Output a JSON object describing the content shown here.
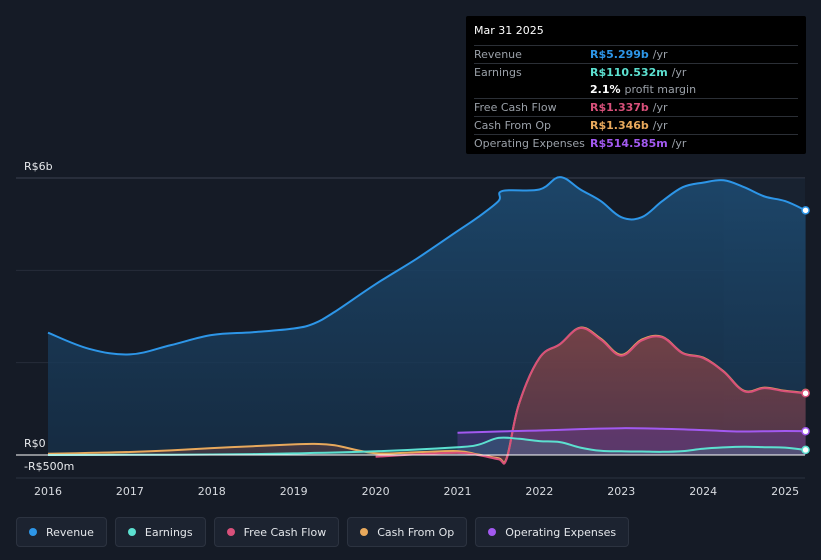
{
  "tooltip": {
    "date": "Mar 31 2025",
    "rows": [
      {
        "label": "Revenue",
        "value": "R$5.299b",
        "unit": "/yr",
        "color": "#2d96e8"
      },
      {
        "label": "Earnings",
        "value": "R$110.532m",
        "unit": "/yr",
        "color": "#5ce0d0"
      },
      {
        "margin_value": "2.1%",
        "margin_text": "profit margin"
      },
      {
        "label": "Free Cash Flow",
        "value": "R$1.337b",
        "unit": "/yr",
        "color": "#d8507a"
      },
      {
        "label": "Cash From Op",
        "value": "R$1.346b",
        "unit": "/yr",
        "color": "#e8a95c"
      },
      {
        "label": "Operating Expenses",
        "value": "R$514.585m",
        "unit": "/yr",
        "color": "#a259f0"
      }
    ]
  },
  "legend": [
    {
      "label": "Revenue",
      "color": "#2d96e8"
    },
    {
      "label": "Earnings",
      "color": "#5ce0d0"
    },
    {
      "label": "Free Cash Flow",
      "color": "#d8507a"
    },
    {
      "label": "Cash From Op",
      "color": "#e8a95c"
    },
    {
      "label": "Operating Expenses",
      "color": "#a259f0"
    }
  ],
  "chart_data": {
    "type": "area",
    "title": "",
    "xlabel": "",
    "ylabel": "",
    "x_ticks": [
      "2016",
      "2017",
      "2018",
      "2019",
      "2020",
      "2021",
      "2022",
      "2023",
      "2024",
      "2025"
    ],
    "y_tick_labels": [
      "R$6b",
      "R$0",
      "-R$500m"
    ],
    "ylim": [
      -500,
      6000
    ],
    "xlim": [
      2015.6,
      2025.25
    ],
    "unit": "R$ millions",
    "forecast_from": 2024.25,
    "series": [
      {
        "name": "Revenue",
        "color": "#2d96e8",
        "points": [
          [
            2016.0,
            2650
          ],
          [
            2016.5,
            2300
          ],
          [
            2017.0,
            2180
          ],
          [
            2017.5,
            2380
          ],
          [
            2018.0,
            2600
          ],
          [
            2018.5,
            2660
          ],
          [
            2019.0,
            2740
          ],
          [
            2019.25,
            2850
          ],
          [
            2019.5,
            3100
          ],
          [
            2020.0,
            3700
          ],
          [
            2020.5,
            4250
          ],
          [
            2021.0,
            4850
          ],
          [
            2021.25,
            5150
          ],
          [
            2021.5,
            5500
          ],
          [
            2021.55,
            5720
          ],
          [
            2022.0,
            5750
          ],
          [
            2022.25,
            6020
          ],
          [
            2022.5,
            5750
          ],
          [
            2022.75,
            5500
          ],
          [
            2023.0,
            5150
          ],
          [
            2023.25,
            5150
          ],
          [
            2023.5,
            5500
          ],
          [
            2023.75,
            5800
          ],
          [
            2024.0,
            5900
          ],
          [
            2024.25,
            5950
          ],
          [
            2024.5,
            5800
          ],
          [
            2024.75,
            5600
          ],
          [
            2025.0,
            5500
          ],
          [
            2025.25,
            5299
          ]
        ]
      },
      {
        "name": "Earnings",
        "color": "#5ce0d0",
        "points": [
          [
            2016.0,
            0
          ],
          [
            2017.0,
            5
          ],
          [
            2018.0,
            10
          ],
          [
            2019.0,
            35
          ],
          [
            2020.0,
            80
          ],
          [
            2021.0,
            170
          ],
          [
            2021.25,
            220
          ],
          [
            2021.5,
            370
          ],
          [
            2021.75,
            350
          ],
          [
            2022.0,
            300
          ],
          [
            2022.25,
            280
          ],
          [
            2022.5,
            160
          ],
          [
            2022.75,
            90
          ],
          [
            2023.0,
            80
          ],
          [
            2023.25,
            75
          ],
          [
            2023.5,
            70
          ],
          [
            2023.75,
            85
          ],
          [
            2024.0,
            135
          ],
          [
            2024.25,
            165
          ],
          [
            2024.5,
            180
          ],
          [
            2024.75,
            170
          ],
          [
            2025.0,
            160
          ],
          [
            2025.25,
            110.532
          ]
        ]
      },
      {
        "name": "Free Cash Flow",
        "color": "#d8507a",
        "points": [
          [
            2020.0,
            -40
          ],
          [
            2020.5,
            15
          ],
          [
            2021.0,
            50
          ],
          [
            2021.25,
            0
          ],
          [
            2021.5,
            -90
          ],
          [
            2021.6,
            -90
          ],
          [
            2021.75,
            1100
          ],
          [
            2022.0,
            2100
          ],
          [
            2022.25,
            2400
          ],
          [
            2022.5,
            2750
          ],
          [
            2022.75,
            2500
          ],
          [
            2023.0,
            2150
          ],
          [
            2023.25,
            2480
          ],
          [
            2023.5,
            2550
          ],
          [
            2023.75,
            2200
          ],
          [
            2024.0,
            2100
          ],
          [
            2024.25,
            1800
          ],
          [
            2024.5,
            1380
          ],
          [
            2024.75,
            1450
          ],
          [
            2025.0,
            1380
          ],
          [
            2025.25,
            1337
          ]
        ]
      },
      {
        "name": "Cash From Op",
        "color": "#e8a95c",
        "points": [
          [
            2016.0,
            25
          ],
          [
            2016.5,
            45
          ],
          [
            2017.0,
            65
          ],
          [
            2017.5,
            100
          ],
          [
            2018.0,
            150
          ],
          [
            2018.5,
            190
          ],
          [
            2019.0,
            230
          ],
          [
            2019.25,
            240
          ],
          [
            2019.5,
            210
          ],
          [
            2020.0,
            40
          ],
          [
            2020.5,
            60
          ],
          [
            2021.0,
            85
          ],
          [
            2021.25,
            10
          ],
          [
            2021.5,
            -70
          ],
          [
            2021.6,
            -70
          ],
          [
            2021.75,
            1100
          ],
          [
            2022.0,
            2100
          ],
          [
            2022.25,
            2400
          ],
          [
            2022.5,
            2760
          ],
          [
            2022.75,
            2520
          ],
          [
            2023.0,
            2170
          ],
          [
            2023.25,
            2500
          ],
          [
            2023.5,
            2560
          ],
          [
            2023.75,
            2210
          ],
          [
            2024.0,
            2110
          ],
          [
            2024.25,
            1810
          ],
          [
            2024.5,
            1390
          ],
          [
            2024.75,
            1460
          ],
          [
            2025.0,
            1390
          ],
          [
            2025.25,
            1346
          ]
        ]
      },
      {
        "name": "Operating Expenses",
        "color": "#a259f0",
        "points": [
          [
            2021.0,
            480
          ],
          [
            2021.5,
            510
          ],
          [
            2022.0,
            530
          ],
          [
            2022.5,
            560
          ],
          [
            2023.0,
            580
          ],
          [
            2023.5,
            570
          ],
          [
            2024.0,
            540
          ],
          [
            2024.25,
            520
          ],
          [
            2024.5,
            510
          ],
          [
            2025.0,
            520
          ],
          [
            2025.25,
            514.585
          ]
        ]
      }
    ]
  }
}
